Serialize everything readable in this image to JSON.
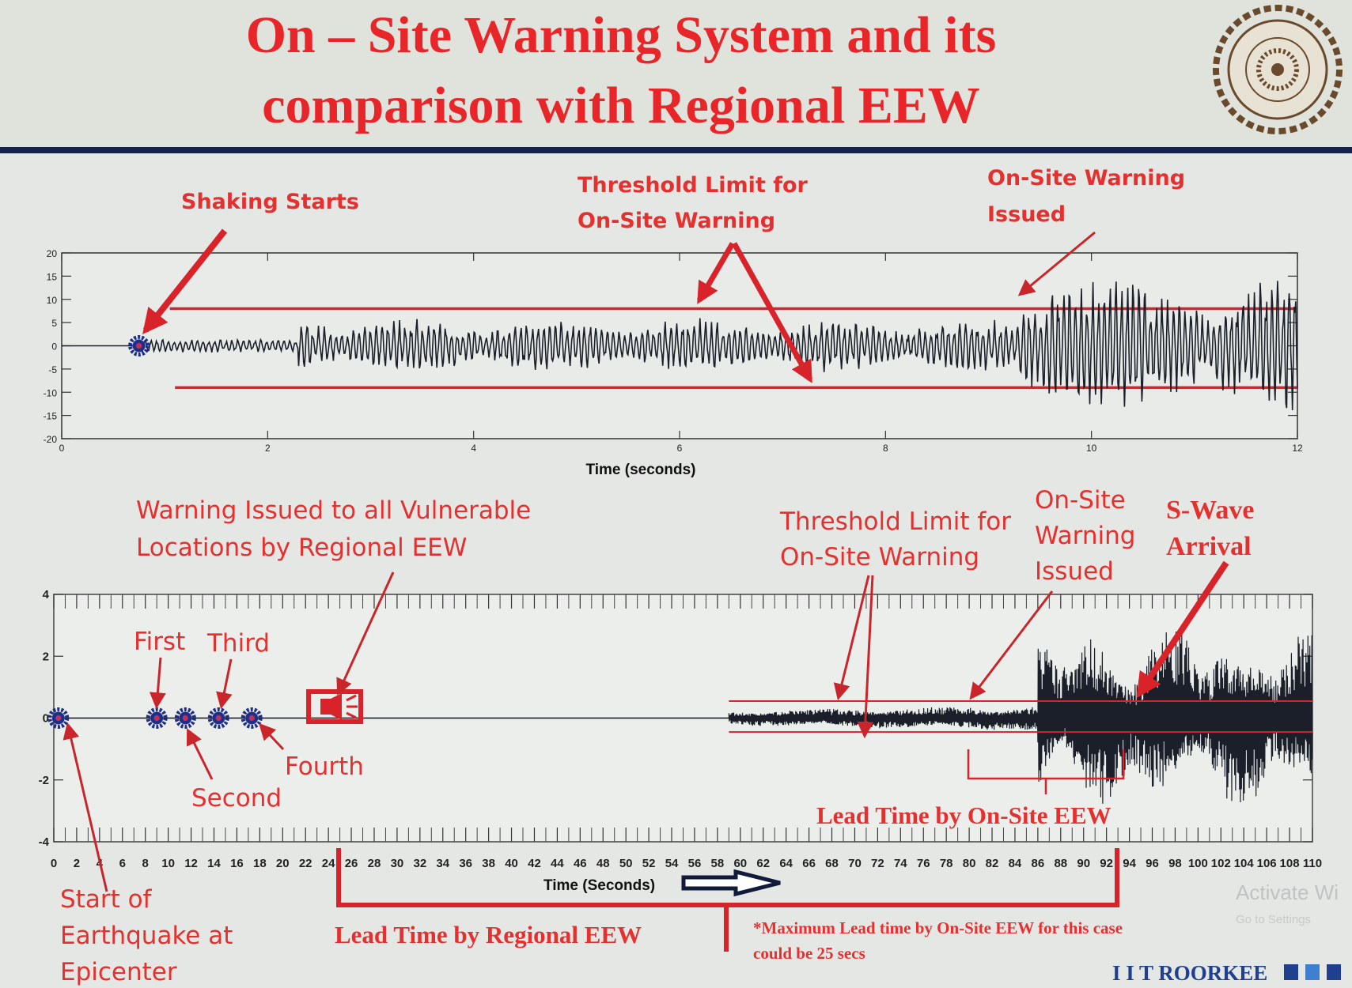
{
  "slide": {
    "title_line1": "On – Site Warning System and its",
    "title_line2": "comparison with Regional EEW",
    "logo": "Indian Institute of Technology Roorkee seal",
    "footer_brand": "I I T ROORKEE",
    "watermark_line1": "Activate Wi",
    "watermark_line2": "Go to Settings"
  },
  "colors": {
    "title": "#e8262a",
    "annotation": "#e4302f",
    "trace": "#1a1f2a",
    "threshold": "#d8232a",
    "marker": "#1d2f8a",
    "footer": "#1f3f8f",
    "rule": "#14234f"
  },
  "top_annotations": {
    "shaking_starts": "Shaking Starts",
    "threshold_line1": "Threshold Limit for",
    "threshold_line2": "On-Site Warning",
    "onsite_line1": "On-Site Warning",
    "onsite_line2": "Issued"
  },
  "bottom_annotations": {
    "regional_line1": "Warning Issued to all Vulnerable",
    "regional_line2": "Locations by Regional EEW",
    "first": "First",
    "second": "Second",
    "third": "Third",
    "fourth": "Fourth",
    "threshold_line1": "Threshold Limit for",
    "threshold_line2": "On-Site Warning",
    "onsite_line1": "On-Site",
    "onsite_line2": "Warning",
    "onsite_line3": "Issued",
    "swave_line1": "S-Wave",
    "swave_line2": "Arrival",
    "lead_onsite": "Lead Time by On-Site EEW",
    "start_line1": "Start of",
    "start_line2": "Earthquake at",
    "start_line3": "Epicenter",
    "lead_regional": "Lead Time by Regional EEW",
    "note_line1": "*Maximum Lead time by On-Site EEW for this case",
    "note_line2": "could be 25 secs"
  },
  "chart_data": [
    {
      "type": "line",
      "xlabel": "Time (seconds)",
      "ylabel": "",
      "xlim": [
        0,
        12
      ],
      "ylim": [
        -20,
        20
      ],
      "xticks": [
        0,
        2,
        4,
        6,
        8,
        10,
        12
      ],
      "yticks": [
        20,
        15,
        10,
        5,
        0,
        -5,
        -10,
        -15,
        -20
      ],
      "grid": false,
      "series": [
        {
          "description_shape": "seismogram",
          "onset": 0.75
        }
      ],
      "threshold_lines": [
        8,
        -9
      ],
      "markers": [
        {
          "x": 0.75,
          "y": 0
        }
      ]
    },
    {
      "type": "line",
      "xlabel": "Time (Seconds)",
      "ylabel": "",
      "xlim": [
        0,
        110
      ],
      "ylim": [
        -4,
        4
      ],
      "xticks": [
        0,
        2,
        4,
        6,
        8,
        10,
        12,
        14,
        16,
        18,
        20,
        22,
        24,
        26,
        28,
        30,
        32,
        34,
        36,
        38,
        40,
        42,
        44,
        46,
        48,
        50,
        52,
        54,
        56,
        58,
        60,
        62,
        64,
        66,
        68,
        70,
        72,
        74,
        76,
        78,
        80,
        82,
        84,
        86,
        88,
        90,
        92,
        94,
        96,
        98,
        100,
        102,
        104,
        106,
        108,
        110
      ],
      "yticks": [
        4,
        2,
        0,
        -2,
        -4
      ],
      "grid": false,
      "series": [
        {
          "description_shape": "seismogram",
          "onset": 59
        }
      ],
      "threshold_lines": [
        0.55,
        -0.45
      ],
      "markers": [
        {
          "x": 0.4,
          "y": 0
        },
        {
          "x": 9,
          "y": 0
        },
        {
          "x": 11.5,
          "y": 0
        },
        {
          "x": 14.4,
          "y": 0
        },
        {
          "x": 17.3,
          "y": 0
        }
      ],
      "siren_icon_x": 25
    }
  ]
}
